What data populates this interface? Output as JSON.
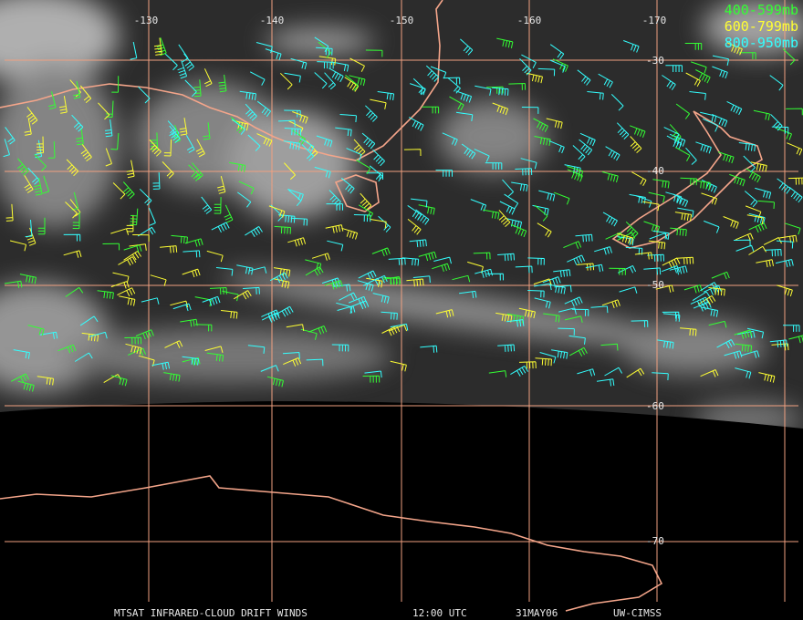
{
  "longitude_labels": [
    "-130",
    "-140",
    "-150",
    "-160",
    "-170"
  ],
  "latitude_labels": [
    "-30",
    "-40",
    "-50",
    "-60",
    "-70"
  ],
  "legend": [
    {
      "label": "400-599mb",
      "color": "#33ff33"
    },
    {
      "label": "600-799mb",
      "color": "#ffff33"
    },
    {
      "label": "800-950mb",
      "color": "#33ffff"
    }
  ],
  "footer": {
    "product": "MTSAT INFRARED-CLOUD DRIFT WINDS",
    "time": "12:00 UTC",
    "date": "31MAY06",
    "source": "UW-CIMSS"
  }
}
